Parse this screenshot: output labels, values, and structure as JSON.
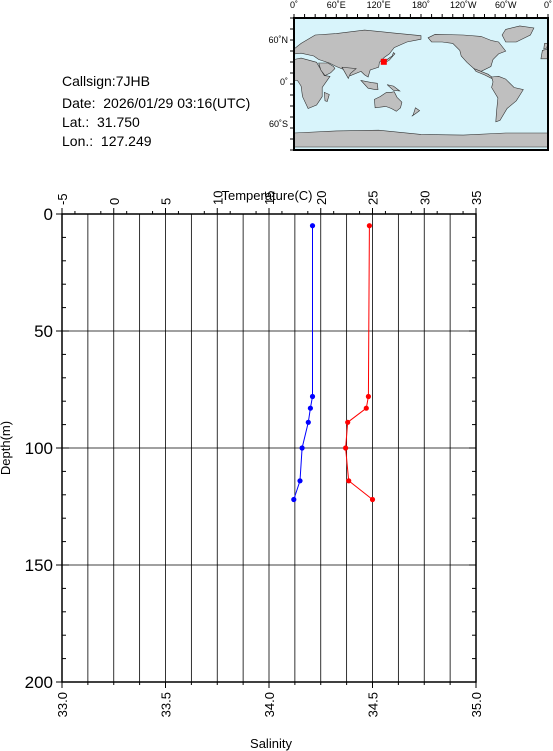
{
  "station": {
    "callsign": "Callsign:7JHB",
    "date": "Date:  2026/01/29 03:16(UTC)",
    "lat": "Lat.:  31.750",
    "lon": "Lon.:  127.249"
  },
  "map": {
    "top_labels": [
      "0˚",
      "60˚E",
      "120˚E",
      "180˚",
      "120˚W",
      "60˚W",
      "0˚"
    ],
    "left_labels": [
      "60˚N",
      "0˚",
      "60˚S"
    ],
    "ocean_color": "#d8f4fb",
    "land_color": "#bfbfbf",
    "marker_color": "#ff0000",
    "marker": {
      "lon": 127.249,
      "lat": 31.75
    }
  },
  "chart_data": {
    "type": "line",
    "ylabel": "Depth(m)",
    "ylim": [
      200,
      0
    ],
    "yticks": [
      "0",
      "50",
      "100",
      "150",
      "200"
    ],
    "top_axis": {
      "label": "Temperature(C)",
      "range": [
        -5,
        35
      ],
      "ticks": [
        "-5",
        "0",
        "5",
        "10",
        "15",
        "20",
        "25",
        "30",
        "35"
      ]
    },
    "bottom_axis": {
      "label": "Salinity",
      "range": [
        33.0,
        35.0
      ],
      "ticks": [
        "33.0",
        "33.5",
        "34.0",
        "34.5",
        "35.0"
      ]
    },
    "grid": true,
    "series": [
      {
        "name": "Temperature(C)",
        "axis": "top",
        "color": "#ff0000",
        "points": [
          {
            "depth": 5,
            "value": 24.7
          },
          {
            "depth": 78,
            "value": 24.6
          },
          {
            "depth": 83,
            "value": 24.4
          },
          {
            "depth": 89,
            "value": 22.6
          },
          {
            "depth": 100,
            "value": 22.4
          },
          {
            "depth": 114,
            "value": 22.7
          },
          {
            "depth": 122,
            "value": 25.0
          }
        ]
      },
      {
        "name": "Salinity",
        "axis": "bottom",
        "color": "#0000ff",
        "points": [
          {
            "depth": 5,
            "value": 34.21
          },
          {
            "depth": 78,
            "value": 34.21
          },
          {
            "depth": 83,
            "value": 34.2
          },
          {
            "depth": 89,
            "value": 34.19
          },
          {
            "depth": 100,
            "value": 34.16
          },
          {
            "depth": 114,
            "value": 34.15
          },
          {
            "depth": 122,
            "value": 34.12
          }
        ]
      }
    ]
  }
}
